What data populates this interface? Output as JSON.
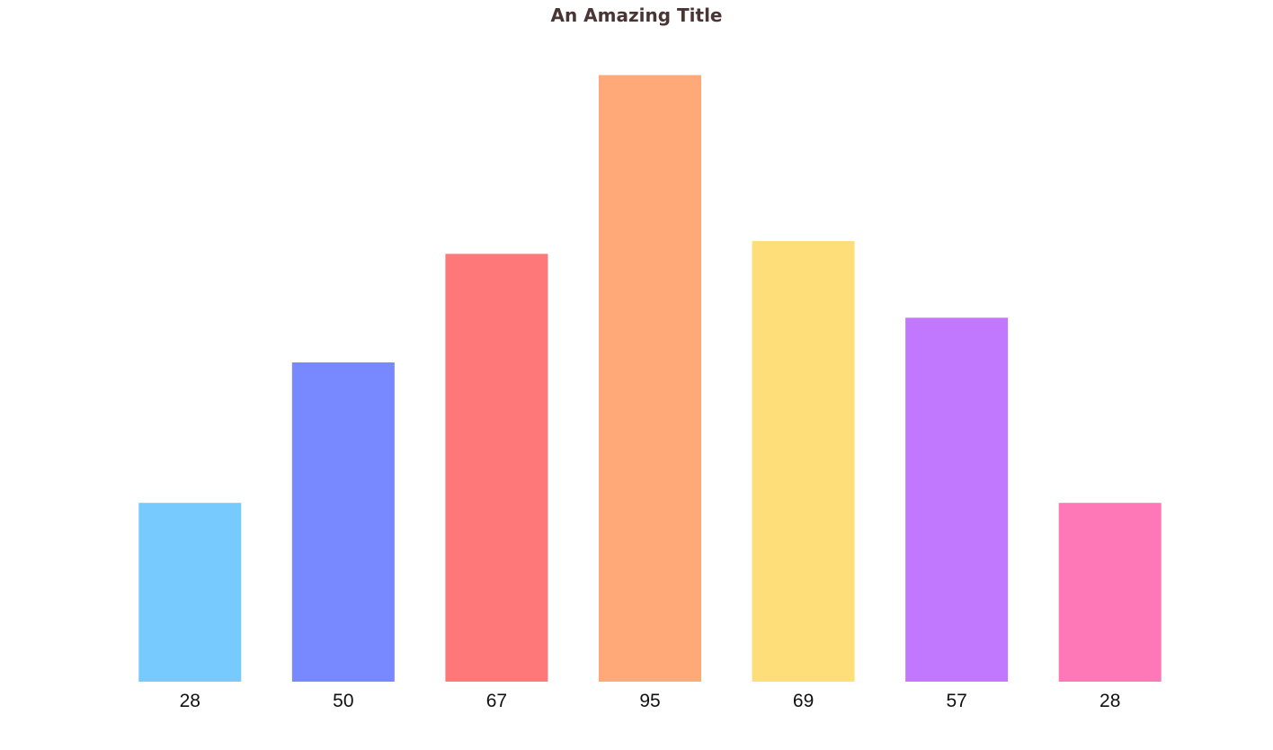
{
  "chart_data": {
    "type": "bar",
    "title": "An Amazing Title",
    "xlabel": "",
    "ylabel": "",
    "categories": [
      "28",
      "50",
      "67",
      "95",
      "69",
      "57",
      "28"
    ],
    "values": [
      28,
      50,
      67,
      95,
      69,
      57,
      28
    ],
    "colors": [
      "#76cafe",
      "#7888fe",
      "#fe7879",
      "#fea977",
      "#fede78",
      "#c278fe",
      "#fe78b8"
    ],
    "ylim": [
      0,
      100
    ],
    "grid": false,
    "legend": "none",
    "axes_visible": false
  }
}
